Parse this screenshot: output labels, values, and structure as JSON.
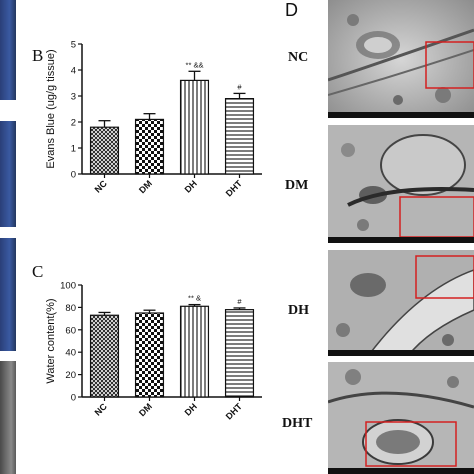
{
  "panels": {
    "B": {
      "letter": "B",
      "chart_data": {
        "type": "bar",
        "categories": [
          "NC",
          "DM",
          "DH",
          "DHT"
        ],
        "values": [
          1.8,
          2.1,
          3.6,
          2.9
        ],
        "errors": [
          0.25,
          0.22,
          0.35,
          0.2
        ],
        "annotations": [
          "",
          "",
          "** &&",
          "#"
        ],
        "ylabel": "Evans Blue (ug/g tissue)",
        "ylim": [
          0,
          5
        ],
        "yticks": [
          "0",
          "1",
          "2",
          "3",
          "4",
          "5"
        ],
        "grid": false,
        "patterns": [
          "crosshatch",
          "checker",
          "vertical",
          "horizontal"
        ]
      }
    },
    "C": {
      "letter": "C",
      "chart_data": {
        "type": "bar",
        "categories": [
          "NC",
          "DM",
          "DH",
          "DHT"
        ],
        "values": [
          73,
          75,
          81,
          78
        ],
        "errors": [
          2.5,
          2.5,
          1.5,
          1.5
        ],
        "annotations": [
          "",
          "",
          "** &",
          "#"
        ],
        "ylabel": "Water content(%)",
        "ylim": [
          0,
          100
        ],
        "yticks": [
          "0",
          "20",
          "40",
          "60",
          "80",
          "100"
        ],
        "grid": false,
        "patterns": [
          "crosshatch",
          "checker",
          "vertical",
          "horizontal"
        ]
      }
    },
    "D": {
      "letter": "D",
      "images": [
        "NC",
        "DM",
        "DH",
        "DHT"
      ]
    }
  }
}
